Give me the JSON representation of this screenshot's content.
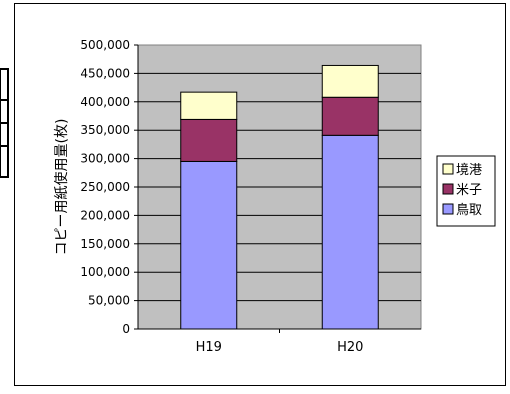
{
  "chart_data": {
    "type": "bar",
    "stacked": true,
    "categories": [
      "H19",
      "H20"
    ],
    "series": [
      {
        "name": "鳥取",
        "color": "#9999ff",
        "values": [
          295000,
          341000
        ]
      },
      {
        "name": "米子",
        "color": "#993366",
        "values": [
          74000,
          67000
        ]
      },
      {
        "name": "境港",
        "color": "#ffffcc",
        "values": [
          48000,
          56000
        ]
      }
    ],
    "ylabel": "コピー用紙使用量(枚)",
    "xlabel": "",
    "ylim": [
      0,
      500000
    ],
    "yticks": [
      "0",
      "50,000",
      "100,000",
      "150,000",
      "200,000",
      "250,000",
      "300,000",
      "350,000",
      "400,000",
      "450,000",
      "500,000"
    ],
    "grid": true,
    "legend_position": "right",
    "plot_background": "#c0c0c0"
  }
}
